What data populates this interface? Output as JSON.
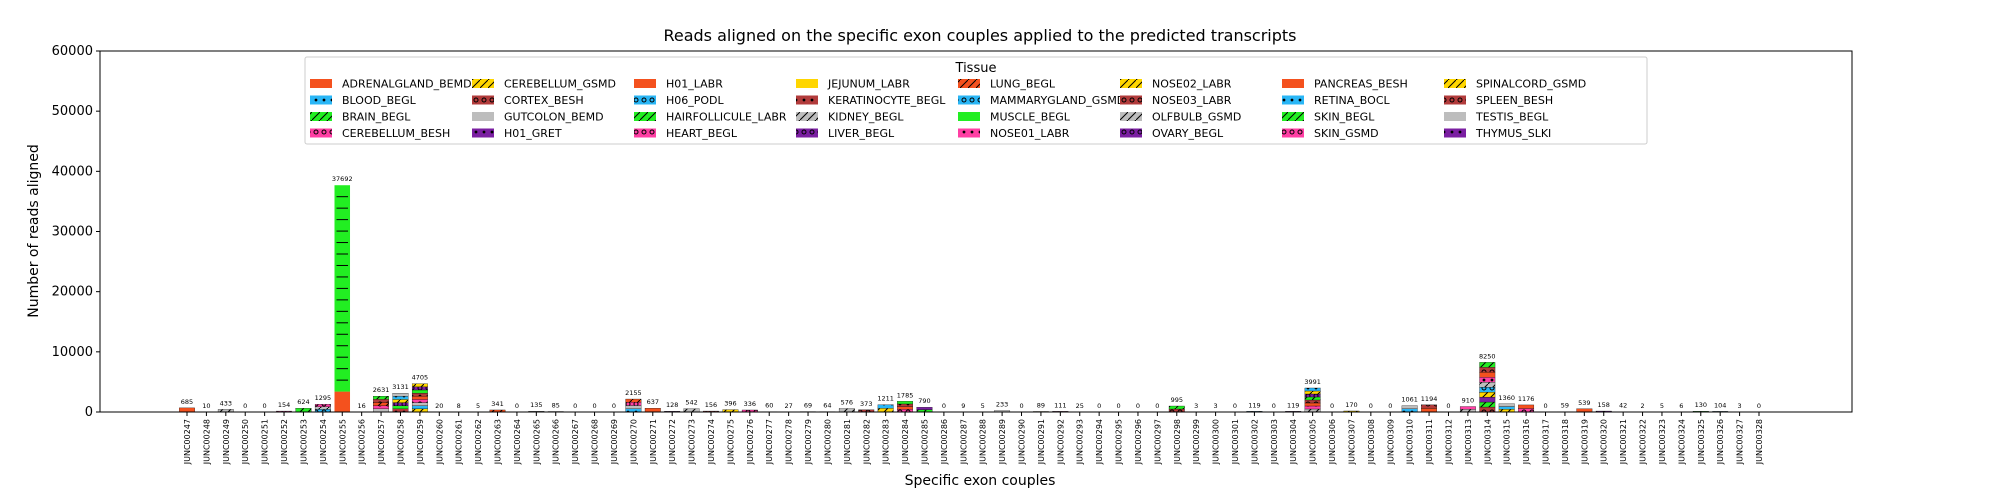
{
  "chart_data": {
    "type": "bar",
    "stacked": true,
    "title": "Reads aligned on the specific exon couples applied to the predicted transcripts",
    "xlabel": "Specific exon couples",
    "ylabel": "Number of reads aligned",
    "ylim": [
      0,
      60000
    ],
    "yticks": [
      0,
      10000,
      20000,
      30000,
      40000,
      50000,
      60000
    ],
    "grid": false,
    "legend": {
      "title": "Tissue",
      "placement": "top-center",
      "entries": [
        "ADRENALGLAND_BEMD",
        "BLOOD_BEGL",
        "BRAIN_BEGL",
        "CEREBELLUM_BESH",
        "CEREBELLUM_GSMD",
        "CORTEX_BESH",
        "GUTCOLON_BEMD",
        "H01_GRET",
        "H01_LABR",
        "H06_PODL",
        "HAIRFOLLICULE_LABR",
        "HEART_BEGL",
        "JEJUNUM_LABR",
        "KERATINOCYTE_BEGL",
        "KIDNEY_BEGL",
        "LIVER_BEGL",
        "LUNG_BEGL",
        "MAMMARYGLAND_GSMD",
        "MUSCLE_BEGL",
        "NOSE01_LABR",
        "NOSE02_LABR",
        "NOSE03_LABR",
        "OLFBULB_GSMD",
        "OVARY_BEGL",
        "PANCREAS_BESH",
        "RETINA_BOCL",
        "SKIN_BEGL",
        "SKIN_GSMD",
        "SPINALCORD_GSMD",
        "SPLEEN_BESH",
        "TESTIS_BEGL",
        "THYMUS_SLKI"
      ],
      "colors": [
        "#f4511e",
        "#29b6f6",
        "#22ee22",
        "#ff3fa4",
        "#ffd600",
        "#b23b3b",
        "#bdbdbd",
        "#7b1fa2",
        "#f4511e",
        "#29b6f6",
        "#22ee22",
        "#ff3fa4",
        "#ffd600",
        "#b23b3b",
        "#bdbdbd",
        "#7b1fa2",
        "#f4511e",
        "#29b6f6",
        "#22ee22",
        "#ff3fa4",
        "#ffd600",
        "#b23b3b",
        "#bdbdbd",
        "#7b1fa2",
        "#f4511e",
        "#29b6f6",
        "#22ee22",
        "#ff3fa4",
        "#ffd600",
        "#b23b3b",
        "#bdbdbd",
        "#7b1fa2"
      ],
      "patterns": [
        "none",
        "dot",
        "slash",
        "ring",
        "slash",
        "ring",
        "none",
        "dot",
        "none",
        "ring",
        "slash",
        "ring",
        "none",
        "dot",
        "slash",
        "ring",
        "slash",
        "ring",
        "none",
        "dot",
        "slash",
        "ring",
        "slash",
        "ring",
        "none",
        "dot",
        "slash",
        "ring",
        "slash",
        "ring",
        "none",
        "dot"
      ]
    },
    "categories": [
      "JUNC00247",
      "JUNC00248",
      "JUNC00249",
      "JUNC00250",
      "JUNC00251",
      "JUNC00252",
      "JUNC00253",
      "JUNC00254",
      "JUNC00255",
      "JUNC00256",
      "JUNC00257",
      "JUNC00258",
      "JUNC00259",
      "JUNC00260",
      "JUNC00261",
      "JUNC00262",
      "JUNC00263",
      "JUNC00264",
      "JUNC00265",
      "JUNC00266",
      "JUNC00267",
      "JUNC00268",
      "JUNC00269",
      "JUNC00270",
      "JUNC00271",
      "JUNC00272",
      "JUNC00273",
      "JUNC00274",
      "JUNC00275",
      "JUNC00276",
      "JUNC00277",
      "JUNC00278",
      "JUNC00279",
      "JUNC00280",
      "JUNC00281",
      "JUNC00282",
      "JUNC00283",
      "JUNC00284",
      "JUNC00285",
      "JUNC00286",
      "JUNC00287",
      "JUNC00288",
      "JUNC00289",
      "JUNC00290",
      "JUNC00291",
      "JUNC00292",
      "JUNC00293",
      "JUNC00294",
      "JUNC00295",
      "JUNC00296",
      "JUNC00297",
      "JUNC00298",
      "JUNC00299",
      "JUNC00300",
      "JUNC00301",
      "JUNC00302",
      "JUNC00303",
      "JUNC00304",
      "JUNC00305",
      "JUNC00306",
      "JUNC00307",
      "JUNC00308",
      "JUNC00309",
      "JUNC00310",
      "JUNC00311",
      "JUNC00312",
      "JUNC00313",
      "JUNC00314",
      "JUNC00315",
      "JUNC00316",
      "JUNC00317",
      "JUNC00318",
      "JUNC00319",
      "JUNC00320",
      "JUNC00321",
      "JUNC00322",
      "JUNC00323",
      "JUNC00324",
      "JUNC00325",
      "JUNC00326",
      "JUNC00327",
      "JUNC00328"
    ],
    "totals": [
      685,
      10,
      433,
      0,
      0,
      154,
      624,
      1295,
      37692,
      16,
      2631,
      3131,
      4705,
      20,
      8,
      5,
      341,
      0,
      135,
      85,
      0,
      0,
      0,
      2155,
      637,
      128,
      542,
      156,
      396,
      336,
      60,
      27,
      69,
      64,
      576,
      373,
      1211,
      1785,
      790,
      0,
      9,
      5,
      233,
      0,
      89,
      111,
      25,
      0,
      0,
      0,
      0,
      995,
      3,
      3,
      0,
      119,
      0,
      119,
      3991,
      0,
      170,
      0,
      0,
      1061,
      1194,
      0,
      910,
      8250,
      1360,
      1176,
      0,
      59,
      539,
      158,
      42,
      2,
      5,
      6,
      130,
      104,
      3,
      0
    ],
    "totals_labels": [
      "685",
      "10",
      "433",
      "0",
      "0",
      "154",
      "624",
      "1295",
      "37692",
      "16",
      "2631",
      "3131",
      "4705",
      "20",
      "8",
      "5",
      "341",
      "0",
      "135",
      "85",
      "0",
      "0",
      "0",
      "2155",
      "637",
      "128",
      "542",
      "156",
      "396",
      "336",
      "60",
      "27",
      "69",
      "64",
      "576",
      "373",
      "1211",
      "1785",
      "790",
      "0",
      "9",
      "5",
      "233",
      "0",
      "89",
      "111",
      "25",
      "0",
      "0",
      "0",
      "0",
      "995",
      "3",
      "3",
      "0",
      "119",
      "0",
      "119",
      "3991",
      "0",
      "170",
      "0",
      "0",
      "1061",
      "1194",
      "0",
      "910",
      "8250",
      "1360",
      "1176",
      "0",
      "59",
      "539",
      "158",
      "42",
      "2",
      "5",
      "6",
      "130",
      "104",
      "3",
      "0"
    ],
    "ytick_labels": [
      "0",
      "10000",
      "20000",
      "30000",
      "40000",
      "50000",
      "60000"
    ]
  }
}
